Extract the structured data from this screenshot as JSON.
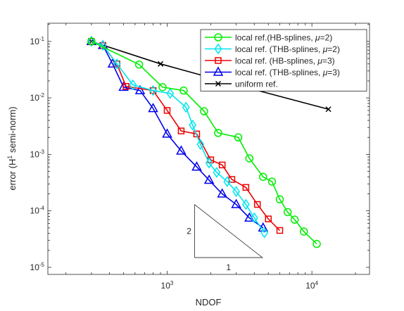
{
  "chart_data": {
    "type": "line",
    "xlabel": "NDOF",
    "ylabel": "error (H",
    "ylabel_sup": "1",
    "ylabel_tail": " semi-norm)",
    "xscale": "log",
    "yscale": "log",
    "xlim": [
      150,
      25000
    ],
    "ylim": [
      7.5e-06,
      0.21
    ],
    "grid": false,
    "legend_position": "top-right",
    "x_ticks": [
      {
        "base": "10",
        "exp": "3",
        "value": 1000
      },
      {
        "base": "10",
        "exp": "4",
        "value": 10000
      }
    ],
    "y_ticks": [
      {
        "base": "10",
        "exp": "-5",
        "value": 1e-05
      },
      {
        "base": "10",
        "exp": "-4",
        "value": 0.0001
      },
      {
        "base": "10",
        "exp": "-3",
        "value": 0.001
      },
      {
        "base": "10",
        "exp": "-2",
        "value": 0.01
      },
      {
        "base": "10",
        "exp": "-1",
        "value": 0.1
      }
    ],
    "slope_triangle": {
      "rise_label": "2",
      "run_label": "1",
      "x": [
        1550,
        4550
      ],
      "y": [
        0.000129,
        1.49e-05
      ]
    },
    "series": [
      {
        "name": "local ref.(HB-splines, μ=2)",
        "name_prefix": "local ref.(HB-splines, ",
        "name_mu": "μ",
        "name_suffix": "=2)",
        "color": "#00ee00",
        "marker": "circle",
        "x": [
          300,
          640,
          930,
          1300,
          1800,
          2250,
          3100,
          3700,
          4600,
          5300,
          6000,
          6800,
          7600,
          8800,
          10800
        ],
        "y": [
          0.1,
          0.039,
          0.0155,
          0.0135,
          0.0058,
          0.0024,
          0.002,
          0.00085,
          0.0004,
          0.00033,
          0.00016,
          9.5e-05,
          7e-05,
          4.3e-05,
          2.6e-05
        ]
      },
      {
        "name": "local ref. (THB-splines, μ=2)",
        "name_prefix": "local ref. (THB-splines, ",
        "name_mu": "μ",
        "name_suffix": "=2)",
        "color": "#00e5ee",
        "marker": "diamond",
        "x": [
          300,
          360,
          450,
          580,
          800,
          1050,
          1350,
          1500,
          1700,
          1950,
          2200,
          2600,
          3000,
          3500,
          4000,
          4700
        ],
        "y": [
          0.1,
          0.085,
          0.04,
          0.017,
          0.0135,
          0.012,
          0.0068,
          0.0033,
          0.0015,
          0.0007,
          0.00048,
          0.00033,
          0.00022,
          0.00013,
          7.5e-05,
          4.1e-05
        ]
      },
      {
        "name": "local ref. (HB-splines, μ=3)",
        "name_prefix": "local ref. (HB-splines, ",
        "name_mu": "μ",
        "name_suffix": "=3)",
        "color": "#ee0000",
        "marker": "square",
        "x": [
          300,
          360,
          450,
          520,
          800,
          1000,
          1250,
          1600,
          2000,
          2400,
          2800,
          3500,
          4200,
          5000,
          6000
        ],
        "y": [
          0.1,
          0.085,
          0.04,
          0.016,
          0.0135,
          0.006,
          0.0026,
          0.0023,
          0.0008,
          0.00065,
          0.00036,
          0.00026,
          0.00013,
          7.2e-05,
          4.5e-05
        ]
      },
      {
        "name": "local ref. (THB-splines, μ=3)",
        "name_prefix": "local ref. (THB-splines, ",
        "name_mu": "μ",
        "name_suffix": "=3)",
        "color": "#0000ee",
        "marker": "triangle",
        "x": [
          300,
          360,
          420,
          500,
          650,
          800,
          1000,
          1250,
          1600,
          1950,
          2400,
          3000,
          3700,
          4600
        ],
        "y": [
          0.1,
          0.085,
          0.04,
          0.0155,
          0.0135,
          0.0065,
          0.0023,
          0.00115,
          0.0006,
          0.00035,
          0.0002,
          0.00013,
          7.5e-05,
          5e-05
        ]
      },
      {
        "name": "uniform ref.",
        "name_prefix": "uniform ref.",
        "name_mu": "",
        "name_suffix": "",
        "color": "#000000",
        "marker": "x",
        "x": [
          300,
          900,
          3300,
          13000
        ],
        "y": [
          0.1,
          0.04,
          0.016,
          0.0063
        ]
      }
    ]
  }
}
